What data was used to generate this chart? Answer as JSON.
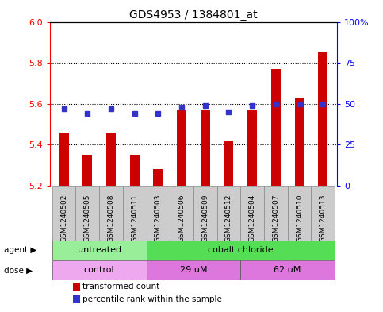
{
  "title": "GDS4953 / 1384801_at",
  "samples": [
    "GSM1240502",
    "GSM1240505",
    "GSM1240508",
    "GSM1240511",
    "GSM1240503",
    "GSM1240506",
    "GSM1240509",
    "GSM1240512",
    "GSM1240504",
    "GSM1240507",
    "GSM1240510",
    "GSM1240513"
  ],
  "transformed_count": [
    5.46,
    5.35,
    5.46,
    5.35,
    5.28,
    5.57,
    5.57,
    5.42,
    5.57,
    5.77,
    5.63,
    5.85
  ],
  "percentile_rank": [
    47,
    44,
    47,
    44,
    44,
    48,
    49,
    45,
    49,
    50,
    50,
    50
  ],
  "y_min": 5.2,
  "y_max": 6.0,
  "y_ticks": [
    5.2,
    5.4,
    5.6,
    5.8,
    6.0
  ],
  "y2_ticks": [
    0,
    25,
    50,
    75,
    100
  ],
  "y2_labels": [
    "0",
    "25",
    "50",
    "75",
    "100%"
  ],
  "bar_color": "#cc0000",
  "dot_color": "#3333cc",
  "agent_groups": [
    {
      "label": "untreated",
      "start": 0,
      "end": 4,
      "color": "#99ee99"
    },
    {
      "label": "cobalt chloride",
      "start": 4,
      "end": 12,
      "color": "#55dd55"
    }
  ],
  "dose_groups": [
    {
      "label": "control",
      "start": 0,
      "end": 4,
      "color": "#eea8ee"
    },
    {
      "label": "29 uM",
      "start": 4,
      "end": 8,
      "color": "#dd77dd"
    },
    {
      "label": "62 uM",
      "start": 8,
      "end": 12,
      "color": "#dd77dd"
    }
  ],
  "legend_bar_label": "transformed count",
  "legend_dot_label": "percentile rank within the sample",
  "xlabel_agent": "agent",
  "xlabel_dose": "dose",
  "cell_bg": "#cccccc",
  "plot_bg": "#ffffff",
  "grid_color": "#000000",
  "bar_width": 0.4
}
